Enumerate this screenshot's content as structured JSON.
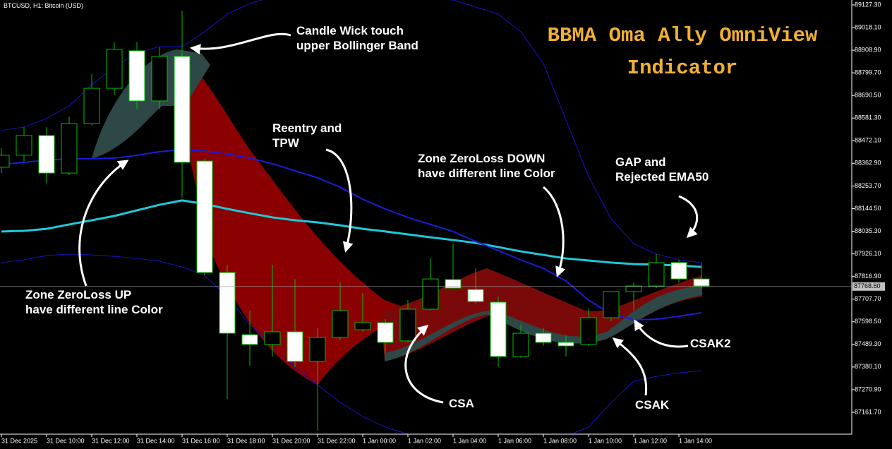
{
  "chart_data": {
    "type": "candlestick",
    "symbol": "BTCUSD, H1: Bitcoin (USD)",
    "title": "BBMA Oma Ally OmniView Indicator",
    "x": [
      "31 Dec 2025",
      null,
      "31 Dec 10:00",
      null,
      "31 Dec 12:00",
      null,
      "31 Dec 14:00",
      null,
      "31 Dec 16:00",
      null,
      "31 Dec 18:00",
      null,
      "31 Dec 20:00",
      null,
      "31 Dec 22:00",
      null,
      "1 Jan 00:00",
      null,
      "1 Jan 02:00",
      null,
      "1 Jan 04:00",
      null,
      "1 Jan 06:00",
      null,
      "1 Jan 08:00",
      null,
      "1 Jan 10:00",
      null,
      "1 Jan 12:00",
      null,
      "1 Jan 14:00",
      null
    ],
    "open": [
      88344,
      88402,
      88497,
      88316,
      88555,
      88725,
      88906,
      88664,
      88879,
      88374,
      87836,
      87536,
      87489,
      87550,
      87407,
      87523,
      87560,
      87594,
      87506,
      87659,
      87802,
      87754,
      87693,
      87431,
      87543,
      87499,
      87489,
      87618,
      87744,
      87771,
      87884,
      87805
    ],
    "high": [
      88436,
      88538,
      88538,
      88589,
      88793,
      88947,
      88947,
      88923,
      89100,
      88385,
      87874,
      87652,
      87874,
      87805,
      87567,
      87788,
      87737,
      87611,
      87703,
      87908,
      87976,
      87856,
      87720,
      87584,
      87567,
      87533,
      87662,
      87744,
      87788,
      87925,
      87897,
      87884
    ],
    "low": [
      88316,
      88374,
      88265,
      88306,
      88545,
      88691,
      88623,
      88623,
      88197,
      87822,
      87226,
      87386,
      87431,
      87380,
      87073,
      87509,
      87550,
      87448,
      87499,
      87652,
      87761,
      87686,
      87380,
      87424,
      87482,
      87431,
      87482,
      87601,
      87652,
      87761,
      87788,
      87761
    ],
    "close": [
      88402,
      88497,
      88316,
      88555,
      88725,
      88913,
      88664,
      88879,
      88368,
      87836,
      87543,
      87489,
      87550,
      87407,
      87523,
      87652,
      87594,
      87499,
      87659,
      87805,
      87761,
      87696,
      87431,
      87543,
      87499,
      87482,
      87618,
      87744,
      87771,
      87884,
      87805,
      87771
    ],
    "up_color": "#00c000",
    "down_color": "#ffffff",
    "lines": [
      {
        "color": "#20c8d8",
        "width": 3,
        "values": [
          88034,
          88037,
          88047,
          88068,
          88088,
          88109,
          88136,
          88163,
          88184,
          88167,
          88143,
          88122,
          88102,
          88088,
          88078,
          88064,
          88047,
          88034,
          88020,
          88006,
          87993,
          87979,
          87959,
          87938,
          87921,
          87904,
          87894,
          87884,
          87877,
          87874,
          87870,
          87863
        ]
      },
      {
        "color": "#1c1cd8",
        "width": 2,
        "values": [
          88357,
          88368,
          88378,
          88385,
          88385,
          88388,
          88402,
          88419,
          88429,
          88422,
          88408,
          88388,
          88361,
          88327,
          88293,
          88248,
          88190,
          88143,
          88102,
          88068,
          88034,
          87986,
          87942,
          87897,
          87856,
          87795,
          87703,
          87635,
          87608,
          87611,
          87625,
          87642
        ]
      },
      {
        "color": "#1414c8",
        "width": 1,
        "values": [
          88521,
          88538,
          88579,
          88640,
          88742,
          88827,
          88896,
          88926,
          88926,
          88998,
          89083,
          89134,
          89168,
          89185,
          89185,
          89168,
          89168,
          89168,
          89168,
          89161,
          89151,
          89117,
          89083,
          88998,
          88845,
          88572,
          88299,
          88095,
          87976,
          87925,
          87897,
          87884
        ]
      },
      {
        "color": "#1414c8",
        "width": 1,
        "values": [
          87884,
          87897,
          87918,
          87925,
          87921,
          87914,
          87904,
          87891,
          87863,
          87822,
          87720,
          87584,
          87482,
          87380,
          87294,
          87209,
          87141,
          87090,
          87056,
          87039,
          87022,
          87005,
          86998,
          87005,
          87022,
          87046,
          87090,
          87209,
          87311,
          87335,
          87352,
          87362
        ]
      }
    ],
    "last_price": {
      "value": 87768.6,
      "label": "87768.60"
    },
    "ylim": [
      87056,
      89151
    ],
    "yticks": [
      {
        "value": 89127.3,
        "label": "89127.30"
      },
      {
        "value": 89018.1,
        "label": "89018.10"
      },
      {
        "value": 88908.9,
        "label": "88908.90"
      },
      {
        "value": 88799.7,
        "label": "88799.70"
      },
      {
        "value": 88690.5,
        "label": "88690.50"
      },
      {
        "value": 88581.3,
        "label": "88581.30"
      },
      {
        "value": 88472.1,
        "label": "88472.10"
      },
      {
        "value": 88362.9,
        "label": "88362.90"
      },
      {
        "value": 88253.7,
        "label": "88253.70"
      },
      {
        "value": 88144.5,
        "label": "88144.50"
      },
      {
        "value": 88035.3,
        "label": "88035.30"
      },
      {
        "value": 87926.1,
        "label": "87926.10"
      },
      {
        "value": 87816.9,
        "label": "87816.90"
      },
      {
        "value": 87707.7,
        "label": "87707.70"
      },
      {
        "value": 87598.5,
        "label": "87598.50"
      },
      {
        "value": 87489.3,
        "label": "87489.30"
      },
      {
        "value": 87380.1,
        "label": "87380.10"
      },
      {
        "value": 87270.9,
        "label": "87270.90"
      },
      {
        "value": 87161.7,
        "label": "87161.70"
      }
    ],
    "annotations": [
      {
        "lines": [
          "Candle Wick touch",
          "upper Bollinger Band"
        ]
      },
      {
        "lines": [
          "Reentry and",
          "TPW"
        ]
      },
      {
        "lines": [
          "Zone ZeroLoss DOWN",
          "have different line Color"
        ]
      },
      {
        "lines": [
          "GAP and",
          "Rejected EMA50"
        ]
      },
      {
        "lines": [
          "Zone ZeroLoss UP",
          "have different line Color"
        ]
      },
      {
        "lines": [
          "CSA"
        ]
      },
      {
        "lines": [
          "CSAK"
        ]
      },
      {
        "lines": [
          "CSAK2"
        ]
      }
    ]
  }
}
